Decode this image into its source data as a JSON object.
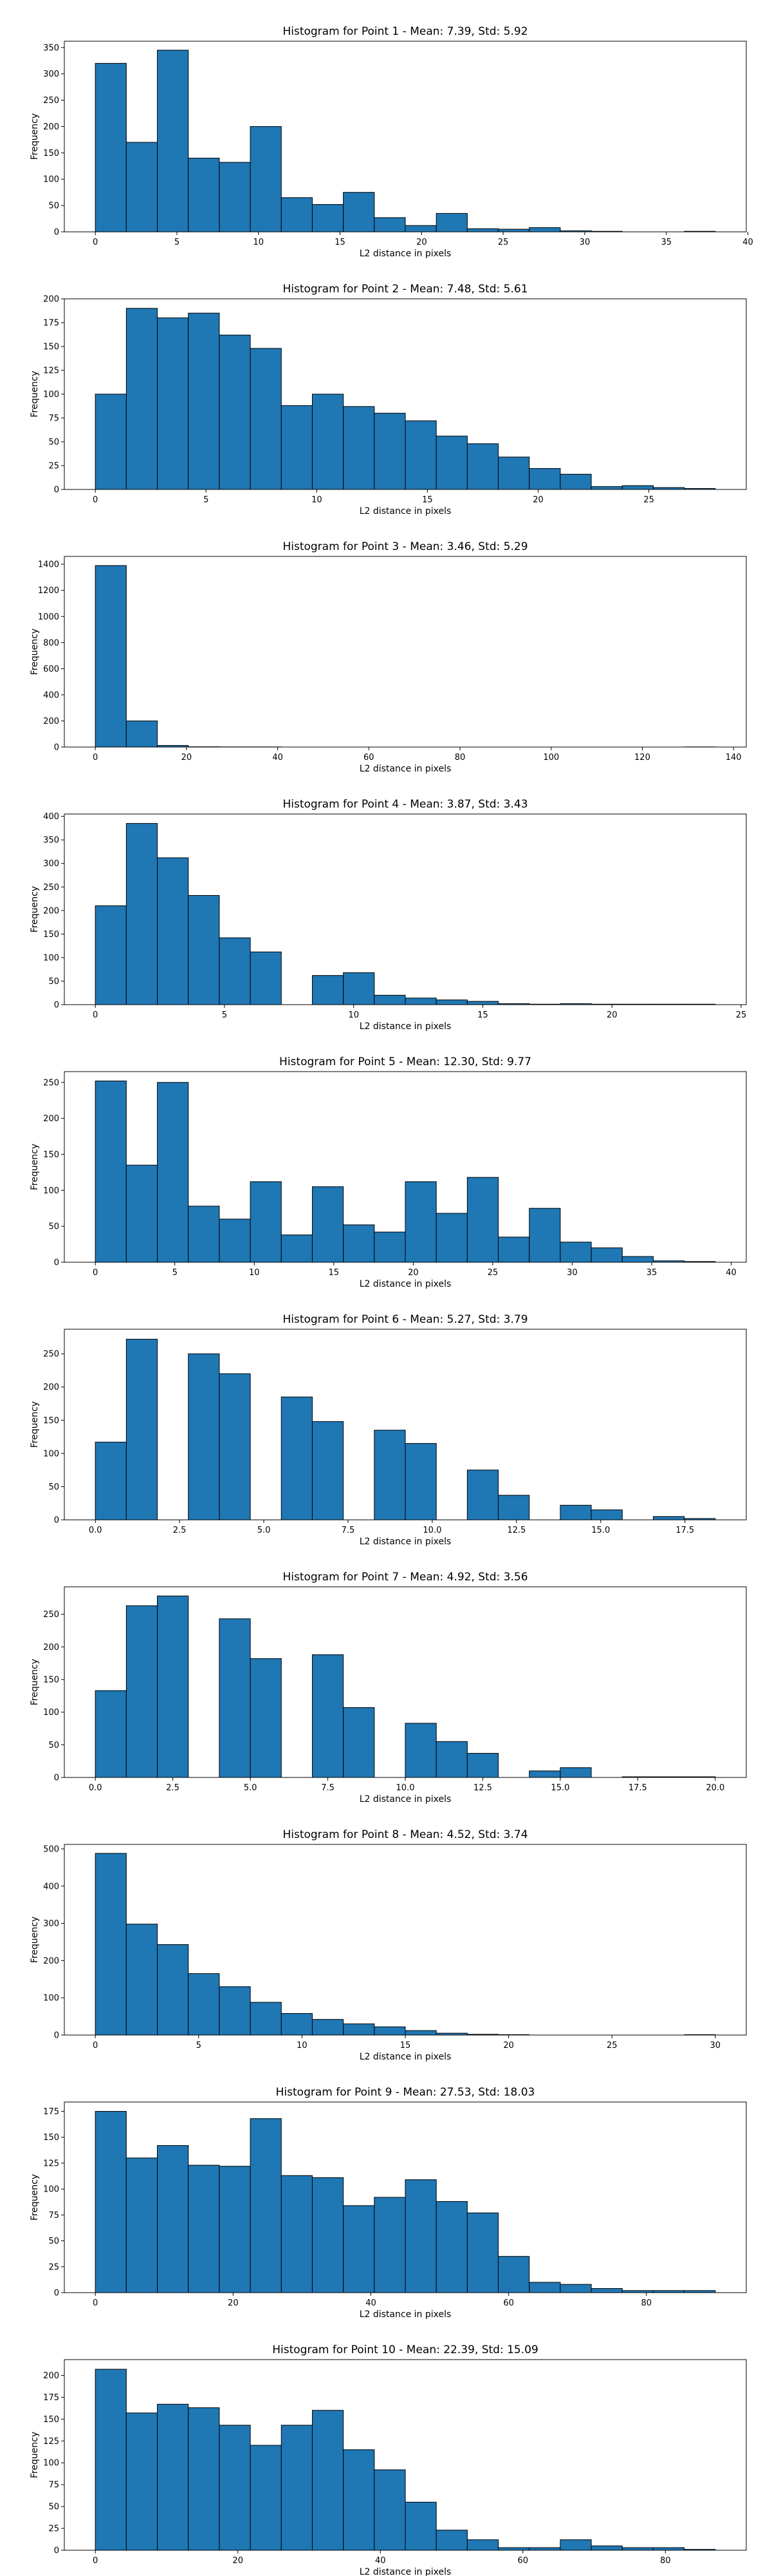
{
  "bar_color": "#1f77b4",
  "edge_color": "#000000",
  "chart_data": [
    {
      "type": "bar",
      "title": "Histogram for Point 1 - Mean: 7.39, Std: 5.92",
      "xlabel": "L2 distance in pixels",
      "ylabel": "Frequency",
      "bin_edges": [
        0,
        1.9,
        3.8,
        5.7,
        7.6,
        9.5,
        11.4,
        13.3,
        15.2,
        17.1,
        19.0,
        20.9,
        22.8,
        24.7,
        26.6,
        28.5,
        30.4,
        32.3,
        34.2,
        36.1,
        38.0
      ],
      "values": [
        320,
        170,
        345,
        140,
        132,
        200,
        65,
        52,
        75,
        27,
        12,
        35,
        6,
        5,
        8,
        2,
        1,
        0,
        0,
        1
      ],
      "xlim": [
        -1.9,
        39.9
      ],
      "ylim": [
        0,
        362
      ],
      "xticks": [
        0,
        5,
        10,
        15,
        20,
        25,
        30,
        35,
        40
      ],
      "yticks": [
        0,
        50,
        100,
        150,
        200,
        250,
        300,
        350
      ]
    },
    {
      "type": "bar",
      "title": "Histogram for Point 2 - Mean: 7.48, Std: 5.61",
      "xlabel": "L2 distance in pixels",
      "ylabel": "Frequency",
      "bin_edges": [
        0,
        1.4,
        2.8,
        4.2,
        5.6,
        7.0,
        8.4,
        9.8,
        11.2,
        12.6,
        14.0,
        15.4,
        16.8,
        18.2,
        19.6,
        21.0,
        22.4,
        23.8,
        25.2,
        26.6,
        28.0
      ],
      "values": [
        100,
        190,
        180,
        185,
        162,
        148,
        88,
        100,
        87,
        80,
        72,
        56,
        48,
        34,
        22,
        16,
        3,
        4,
        2,
        1
      ],
      "xlim": [
        -1.4,
        29.4
      ],
      "ylim": [
        0,
        200
      ],
      "xticks": [
        0,
        5,
        10,
        15,
        20,
        25
      ],
      "yticks": [
        0,
        25,
        50,
        75,
        100,
        125,
        150,
        175,
        200
      ]
    },
    {
      "type": "bar",
      "title": "Histogram for Point 3 - Mean: 3.46, Std: 5.29",
      "xlabel": "L2 distance in pixels",
      "ylabel": "Frequency",
      "bin_edges": [
        0,
        6.8,
        13.6,
        20.4,
        27.2,
        34.0,
        40.8,
        47.6,
        54.4,
        61.2,
        68.0,
        74.8,
        81.6,
        88.4,
        95.2,
        102.0,
        108.8,
        115.6,
        122.4,
        129.2,
        136.0
      ],
      "values": [
        1390,
        200,
        12,
        2,
        1,
        1,
        0,
        0,
        0,
        0,
        0,
        0,
        0,
        0,
        0,
        0,
        0,
        0,
        0,
        1
      ],
      "xlim": [
        -6.8,
        142.8
      ],
      "ylim": [
        0,
        1460
      ],
      "xticks": [
        0,
        20,
        40,
        60,
        80,
        100,
        120,
        140
      ],
      "yticks": [
        0,
        200,
        400,
        600,
        800,
        1000,
        1200,
        1400
      ]
    },
    {
      "type": "bar",
      "title": "Histogram for Point 4 - Mean: 3.87, Std: 3.43",
      "xlabel": "L2 distance in pixels",
      "ylabel": "Frequency",
      "bin_edges": [
        0,
        1.2,
        2.4,
        3.6,
        4.8,
        6.0,
        7.2,
        8.4,
        9.6,
        10.8,
        12.0,
        13.2,
        14.4,
        15.6,
        16.8,
        18.0,
        19.2,
        20.4,
        21.6,
        22.8,
        24.0
      ],
      "values": [
        210,
        385,
        312,
        232,
        142,
        112,
        0,
        62,
        68,
        20,
        14,
        10,
        7,
        2,
        1,
        2,
        1,
        1,
        1,
        1
      ],
      "xlim": [
        -1.2,
        25.2
      ],
      "ylim": [
        0,
        405
      ],
      "xticks": [
        0,
        5,
        10,
        15,
        20,
        25
      ],
      "yticks": [
        0,
        50,
        100,
        150,
        200,
        250,
        300,
        350,
        400
      ]
    },
    {
      "type": "bar",
      "title": "Histogram for Point 5 - Mean: 12.30, Std: 9.77",
      "xlabel": "L2 distance in pixels",
      "ylabel": "Frequency",
      "bin_edges": [
        0,
        1.95,
        3.9,
        5.85,
        7.8,
        9.75,
        11.7,
        13.65,
        15.6,
        17.55,
        19.5,
        21.45,
        23.4,
        25.35,
        27.3,
        29.25,
        31.2,
        33.15,
        35.1,
        37.05,
        39.0
      ],
      "values": [
        252,
        135,
        250,
        78,
        60,
        112,
        38,
        105,
        52,
        42,
        112,
        68,
        118,
        35,
        75,
        28,
        20,
        8,
        2,
        1
      ],
      "xlim": [
        -1.95,
        40.95
      ],
      "ylim": [
        0,
        265
      ],
      "xticks": [
        0,
        5,
        10,
        15,
        20,
        25,
        30,
        35,
        40
      ],
      "yticks": [
        0,
        50,
        100,
        150,
        200,
        250
      ]
    },
    {
      "type": "bar",
      "title": "Histogram for Point 6 - Mean: 5.27, Std: 3.79",
      "xlabel": "L2 distance in pixels",
      "ylabel": "Frequency",
      "bin_edges": [
        0,
        0.92,
        1.84,
        2.76,
        3.68,
        4.6,
        5.52,
        6.44,
        7.36,
        8.28,
        9.2,
        10.12,
        11.04,
        11.96,
        12.88,
        13.8,
        14.72,
        15.64,
        16.56,
        17.48,
        18.4
      ],
      "values": [
        117,
        272,
        0,
        250,
        220,
        0,
        185,
        148,
        0,
        135,
        115,
        0,
        75,
        37,
        0,
        22,
        15,
        0,
        5,
        2
      ],
      "xlim": [
        -0.92,
        19.32
      ],
      "ylim": [
        0,
        287
      ],
      "xticks": [
        0,
        2.5,
        5,
        7.5,
        10,
        12.5,
        15,
        17.5
      ],
      "xtick_labels": [
        "0.0",
        "2.5",
        "5.0",
        "7.5",
        "10.0",
        "12.5",
        "15.0",
        "17.5"
      ],
      "yticks": [
        0,
        50,
        100,
        150,
        200,
        250
      ]
    },
    {
      "type": "bar",
      "title": "Histogram for Point 7 - Mean: 4.92, Std: 3.56",
      "xlabel": "L2 distance in pixels",
      "ylabel": "Frequency",
      "bin_edges": [
        0,
        1,
        2,
        3,
        4,
        5,
        6,
        7,
        8,
        9,
        10,
        11,
        12,
        13,
        14,
        15,
        16,
        17,
        18,
        19,
        20
      ],
      "values": [
        133,
        263,
        278,
        0,
        243,
        182,
        0,
        188,
        107,
        0,
        83,
        55,
        37,
        0,
        10,
        15,
        0,
        1,
        1,
        1
      ],
      "xlim": [
        -1,
        21
      ],
      "ylim": [
        0,
        292
      ],
      "xticks": [
        0,
        2.5,
        5,
        7.5,
        10,
        12.5,
        15,
        17.5,
        20
      ],
      "xtick_labels": [
        "0.0",
        "2.5",
        "5.0",
        "7.5",
        "10.0",
        "12.5",
        "15.0",
        "17.5",
        "20.0"
      ],
      "yticks": [
        0,
        50,
        100,
        150,
        200,
        250
      ]
    },
    {
      "type": "bar",
      "title": "Histogram for Point 8 - Mean: 4.52, Std: 3.74",
      "xlabel": "L2 distance in pixels",
      "ylabel": "Frequency",
      "bin_edges": [
        0,
        1.5,
        3.0,
        4.5,
        6.0,
        7.5,
        9.0,
        10.5,
        12.0,
        13.5,
        15.0,
        16.5,
        18.0,
        19.5,
        21.0,
        22.5,
        24.0,
        25.5,
        27.0,
        28.5,
        30.0
      ],
      "values": [
        488,
        298,
        243,
        165,
        130,
        88,
        58,
        42,
        30,
        22,
        12,
        5,
        2,
        1,
        0,
        0,
        0,
        0,
        0,
        1
      ],
      "xlim": [
        -1.5,
        31.5
      ],
      "ylim": [
        0,
        512
      ],
      "xticks": [
        0,
        5,
        10,
        15,
        20,
        25,
        30
      ],
      "yticks": [
        0,
        100,
        200,
        300,
        400,
        500
      ]
    },
    {
      "type": "bar",
      "title": "Histogram for Point 9 - Mean: 27.53, Std: 18.03",
      "xlabel": "L2 distance in pixels",
      "ylabel": "Frequency",
      "bin_edges": [
        0,
        4.5,
        9.0,
        13.5,
        18.0,
        22.5,
        27.0,
        31.5,
        36.0,
        40.5,
        45.0,
        49.5,
        54.0,
        58.5,
        63.0,
        67.5,
        72.0,
        76.5,
        81.0,
        85.5,
        90.0
      ],
      "values": [
        175,
        130,
        142,
        123,
        122,
        168,
        113,
        111,
        84,
        92,
        109,
        88,
        77,
        35,
        10,
        8,
        4,
        2,
        2,
        2
      ],
      "xlim": [
        -4.5,
        94.5
      ],
      "ylim": [
        0,
        184
      ],
      "xticks": [
        0,
        20,
        40,
        60,
        80
      ],
      "yticks": [
        0,
        25,
        50,
        75,
        100,
        125,
        150,
        175
      ]
    },
    {
      "type": "bar",
      "title": "Histogram for Point 10 - Mean: 22.39, Std: 15.09",
      "xlabel": "L2 distance in pixels",
      "ylabel": "Frequency",
      "bin_edges": [
        0,
        4.35,
        8.7,
        13.05,
        17.4,
        21.75,
        26.1,
        30.45,
        34.8,
        39.15,
        43.5,
        47.85,
        52.2,
        56.55,
        60.9,
        65.25,
        69.6,
        73.95,
        78.3,
        82.65,
        87.0
      ],
      "values": [
        207,
        157,
        167,
        163,
        143,
        120,
        143,
        160,
        115,
        92,
        55,
        23,
        12,
        3,
        3,
        12,
        5,
        3,
        3,
        1
      ],
      "xlim": [
        -4.35,
        91.35
      ],
      "ylim": [
        0,
        218
      ],
      "xticks": [
        0,
        20,
        40,
        60,
        80
      ],
      "yticks": [
        0,
        25,
        50,
        75,
        100,
        125,
        150,
        175,
        200
      ]
    }
  ]
}
